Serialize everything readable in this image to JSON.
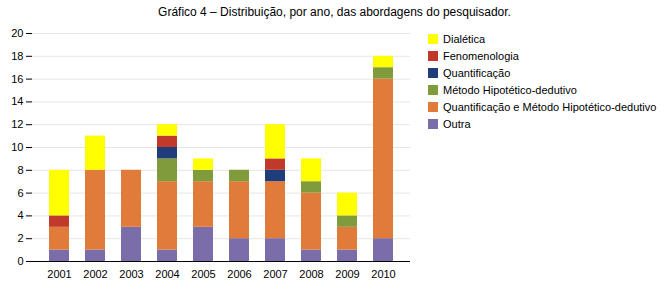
{
  "chart_data": {
    "type": "bar",
    "stacked": true,
    "title": "Gráfico 4 – Distribuição, por ano, das abordagens do pesquisador.",
    "categories": [
      "2001",
      "2002",
      "2003",
      "2004",
      "2005",
      "2006",
      "2007",
      "2008",
      "2009",
      "2010"
    ],
    "series": [
      {
        "name": "Outra",
        "color": "#7B6DAA",
        "values": [
          1,
          1,
          3,
          1,
          3,
          2,
          2,
          1,
          1,
          2
        ]
      },
      {
        "name": "Quantificação e Método Hipotético-dedutivo",
        "color": "#E07B39",
        "values": [
          2,
          7,
          5,
          6,
          4,
          5,
          5,
          5,
          2,
          14
        ]
      },
      {
        "name": "Método Hipotético-dedutivo",
        "color": "#7F9B3B",
        "values": [
          0,
          0,
          0,
          2,
          1,
          1,
          0,
          1,
          1,
          1
        ]
      },
      {
        "name": "Quantificação",
        "color": "#1F3D7A",
        "values": [
          0,
          0,
          0,
          1,
          0,
          0,
          1,
          0,
          0,
          0
        ]
      },
      {
        "name": "Fenomenologia",
        "color": "#C0392B",
        "values": [
          1,
          0,
          0,
          1,
          0,
          0,
          1,
          0,
          0,
          0
        ]
      },
      {
        "name": "Dialética",
        "color": "#FFFF00",
        "values": [
          4,
          3,
          0,
          1,
          1,
          0,
          3,
          2,
          2,
          1
        ]
      }
    ],
    "ylim": [
      0,
      20
    ],
    "yticks": [
      0,
      2,
      4,
      6,
      8,
      10,
      12,
      14,
      16,
      18,
      20
    ],
    "grid": true,
    "legend": "right"
  }
}
